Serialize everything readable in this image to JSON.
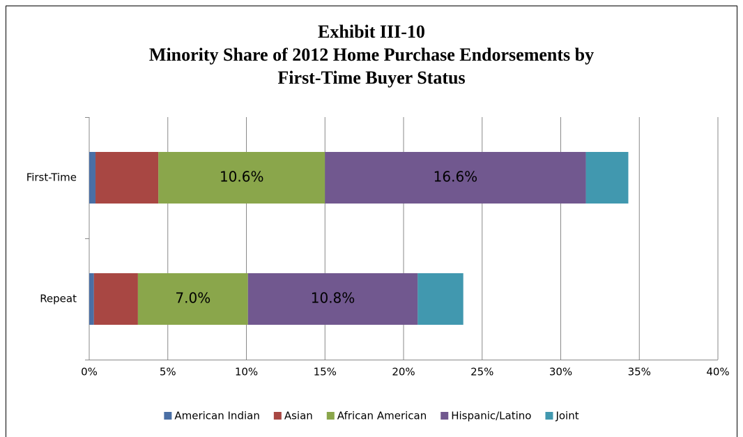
{
  "chart_data": {
    "type": "stacked-bar-horizontal",
    "title": [
      "Exhibit III-10",
      "Minority Share of 2012 Home Purchase Endorsements by",
      "First-Time Buyer Status"
    ],
    "categories": [
      "First-Time",
      "Repeat"
    ],
    "series": [
      {
        "name": "American Indian",
        "color": "#4a6fa5",
        "values": [
          0.4,
          0.3
        ]
      },
      {
        "name": "Asian",
        "color": "#a84743",
        "values": [
          4.0,
          2.8
        ]
      },
      {
        "name": "African American",
        "color": "#8aa64b",
        "values": [
          10.6,
          7.0
        ],
        "value_labels": [
          "10.6%",
          "7.0%"
        ]
      },
      {
        "name": "Hispanic/Latino",
        "color": "#71588f",
        "values": [
          16.6,
          10.8
        ],
        "value_labels": [
          "16.6%",
          "10.8%"
        ]
      },
      {
        "name": "Joint",
        "color": "#4198af",
        "values": [
          2.7,
          2.9
        ]
      }
    ],
    "xlim": [
      0,
      40
    ],
    "xticks": [
      {
        "value": 0,
        "label": "0%"
      },
      {
        "value": 5,
        "label": "5%"
      },
      {
        "value": 10,
        "label": "10%"
      },
      {
        "value": 15,
        "label": "15%"
      },
      {
        "value": 20,
        "label": "20%"
      },
      {
        "value": 25,
        "label": "25%"
      },
      {
        "value": 30,
        "label": "30%"
      },
      {
        "value": 35,
        "label": "35%"
      },
      {
        "value": 40,
        "label": "40%"
      }
    ],
    "grid": true,
    "legend": "bottom"
  }
}
